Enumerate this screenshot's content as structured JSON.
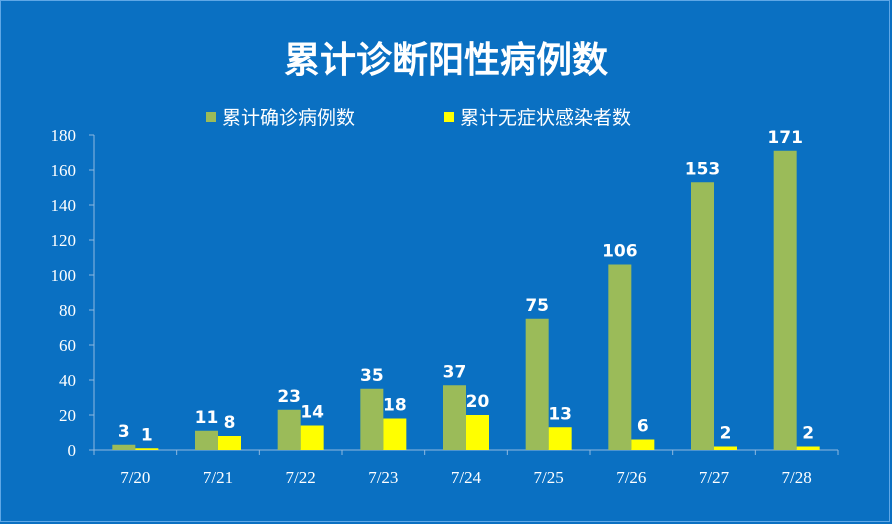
{
  "chart_data": {
    "type": "bar",
    "title": "累计诊断阳性病例数",
    "categories": [
      "7/20",
      "7/21",
      "7/22",
      "7/23",
      "7/24",
      "7/25",
      "7/26",
      "7/27",
      "7/28"
    ],
    "series": [
      {
        "name": "累计确诊病例数",
        "color": "#9bbb59",
        "values": [
          3,
          11,
          23,
          35,
          37,
          75,
          106,
          153,
          171
        ]
      },
      {
        "name": "累计无症状感染者数",
        "color": "#ffff00",
        "values": [
          1,
          8,
          14,
          18,
          20,
          13,
          6,
          2,
          2
        ]
      }
    ],
    "ylim": [
      0,
      180
    ],
    "yticks": [
      "0",
      "20",
      "40",
      "60",
      "80",
      "100",
      "120",
      "140",
      "160",
      "180"
    ],
    "legend": "top",
    "grid": false,
    "data_labels": true
  },
  "colors": {
    "background": "#0a70c2",
    "text": "#ffffff",
    "axis": "#8fb8e0"
  }
}
